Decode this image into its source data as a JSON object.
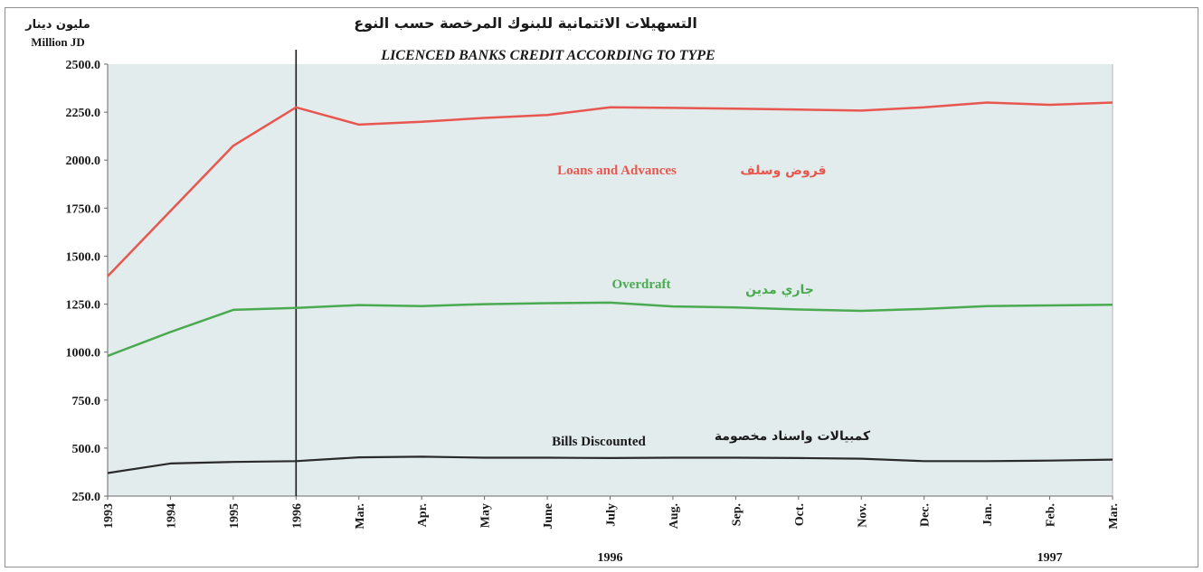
{
  "chart_data": {
    "type": "line",
    "title": "التسهيلات الائتمانية للبنوك المرخصة حسب النوع",
    "subtitle": "LICENCED BANKS CREDIT ACCORDING TO TYPE",
    "ylabel_ar": "مليون دينار",
    "ylabel": "Million JD",
    "xlabel": "",
    "ylim": [
      250,
      2500
    ],
    "yticks": [
      "2500.0",
      "2250.0",
      "2000.0",
      "1750.0",
      "1500.0",
      "1250.0",
      "1000.0",
      "750.0",
      "500.0",
      "250.0"
    ],
    "categories": [
      "1993",
      "1994",
      "1995",
      "1996",
      "Mar.",
      "Apr.",
      "May",
      "June",
      "July",
      "Aug.",
      "Sep.",
      "Oct.",
      "Nov.",
      "Dec.",
      "Jan.",
      "Feb.",
      "Mar."
    ],
    "year_labels": [
      "1996",
      "1997"
    ],
    "grid": false,
    "background_color": "#e3ecec",
    "series": [
      {
        "name": "Loans and Advances",
        "name_ar": "قروض وسلف",
        "color": "#e8574f",
        "values": [
          1395,
          1735,
          2075,
          2275,
          2185,
          2200,
          2220,
          2235,
          2275,
          2272,
          2268,
          2263,
          2258,
          2275,
          2300,
          2288,
          2300
        ]
      },
      {
        "name": "Overdraft",
        "name_ar": "جاري مدين",
        "color": "#4aaa50",
        "values": [
          980,
          1105,
          1220,
          1230,
          1245,
          1240,
          1250,
          1255,
          1258,
          1238,
          1233,
          1222,
          1215,
          1225,
          1240,
          1243,
          1247
        ]
      },
      {
        "name": "Bills Discounted",
        "name_ar": "كمبيالات واسناد مخصومة",
        "color": "#2a2a2a",
        "values": [
          370,
          420,
          428,
          432,
          452,
          455,
          450,
          450,
          448,
          450,
          450,
          448,
          445,
          432,
          432,
          435,
          440
        ]
      }
    ]
  }
}
